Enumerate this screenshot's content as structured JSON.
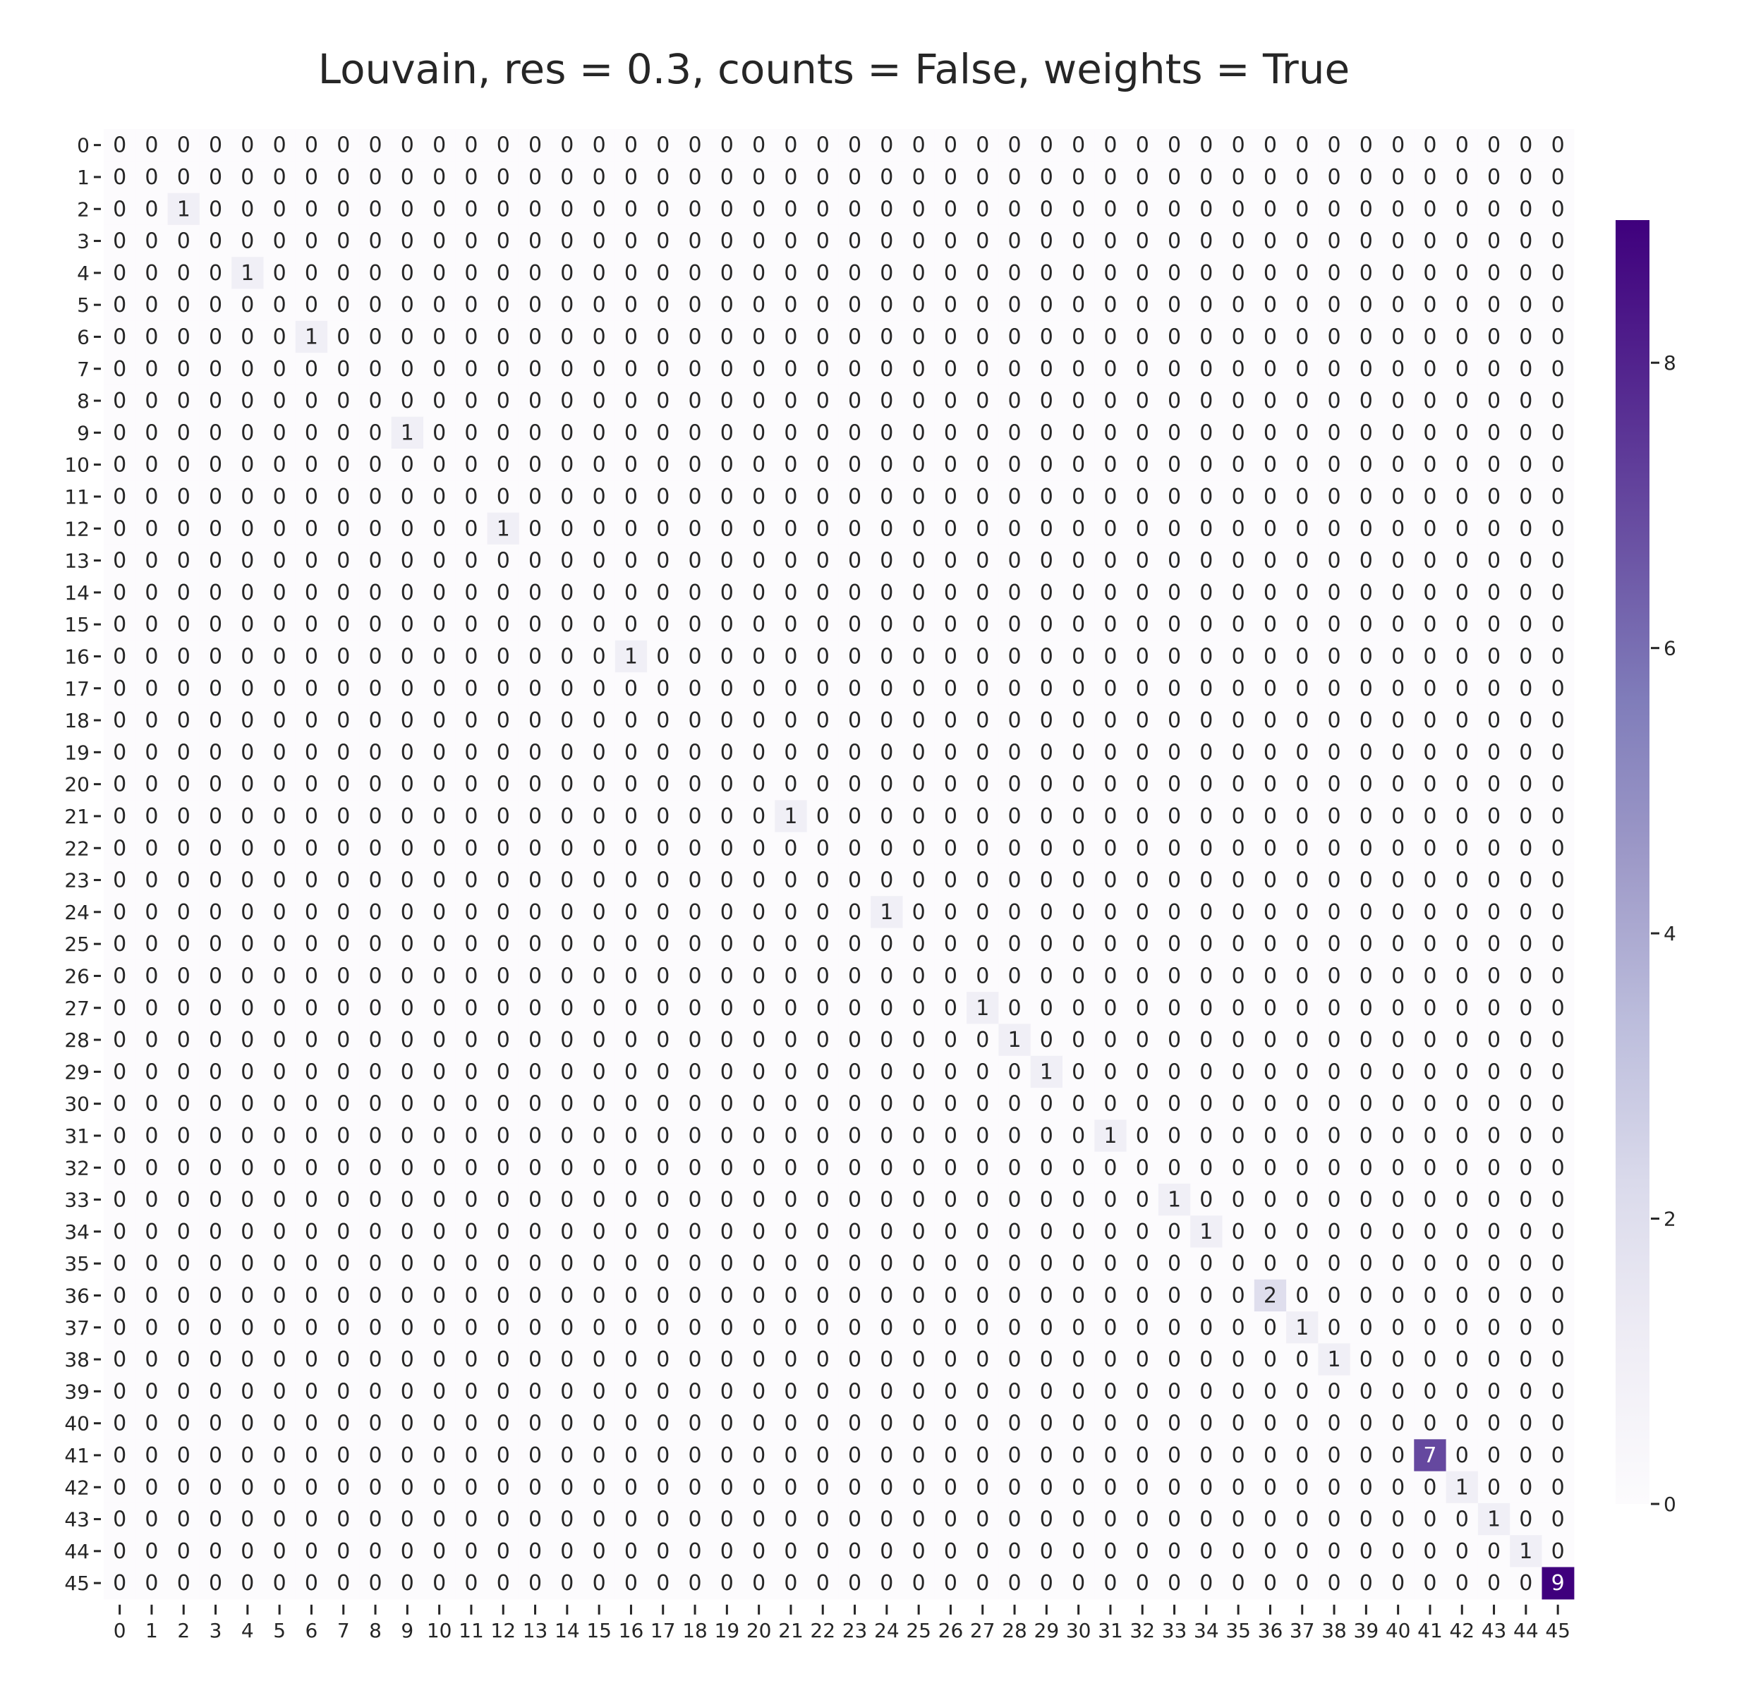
{
  "chart_data": {
    "type": "heatmap",
    "title": "Louvain, res = 0.3, counts = False, weights = True",
    "row_labels": [
      "0",
      "1",
      "2",
      "3",
      "4",
      "5",
      "6",
      "7",
      "8",
      "9",
      "10",
      "11",
      "12",
      "13",
      "14",
      "15",
      "16",
      "17",
      "18",
      "19",
      "20",
      "21",
      "22",
      "23",
      "24",
      "25",
      "26",
      "27",
      "28",
      "29",
      "30",
      "31",
      "32",
      "33",
      "34",
      "35",
      "36",
      "37",
      "38",
      "39",
      "40",
      "41",
      "42",
      "43",
      "44",
      "45"
    ],
    "col_labels": [
      "0",
      "1",
      "2",
      "3",
      "4",
      "5",
      "6",
      "7",
      "8",
      "9",
      "10",
      "11",
      "12",
      "13",
      "14",
      "15",
      "16",
      "17",
      "18",
      "19",
      "20",
      "21",
      "22",
      "23",
      "24",
      "25",
      "26",
      "27",
      "28",
      "29",
      "30",
      "31",
      "32",
      "33",
      "34",
      "35",
      "36",
      "37",
      "38",
      "39",
      "40",
      "41",
      "42",
      "43",
      "44",
      "45"
    ],
    "diagonal_values": [
      0,
      0,
      1,
      0,
      1,
      0,
      1,
      0,
      0,
      1,
      0,
      0,
      1,
      0,
      0,
      0,
      1,
      0,
      0,
      0,
      0,
      1,
      0,
      0,
      1,
      0,
      0,
      1,
      1,
      1,
      0,
      1,
      0,
      1,
      1,
      0,
      2,
      1,
      1,
      0,
      0,
      7,
      1,
      1,
      1,
      9
    ],
    "off_diagonal_value": 0,
    "colormap": "Purples",
    "color_low": "#fcfbfd",
    "color_high": "#3f007d",
    "vmin": 0,
    "vmax": 9,
    "colorbar_ticks": [
      0,
      2,
      4,
      6,
      8
    ],
    "annotated": true
  }
}
